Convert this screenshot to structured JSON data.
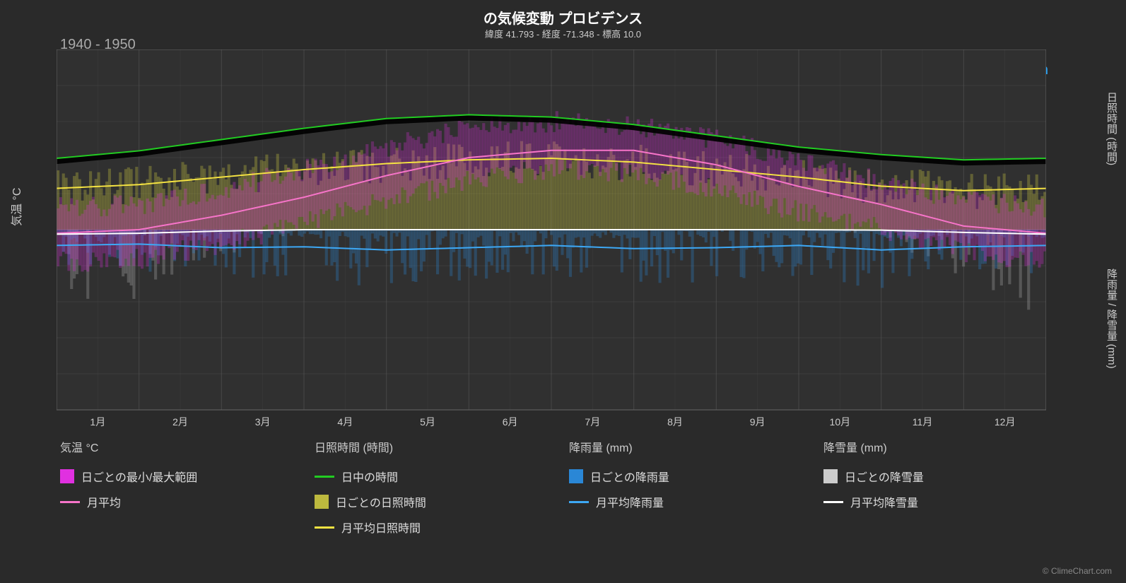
{
  "title": "の気候変動 プロビデンス",
  "subtitle": "緯度 41.793 - 経度 -71.348 - 標高 10.0",
  "period": "1940 - 1950",
  "watermark_text": "ClimeChart.com",
  "copyright": "© ClimeChart.com",
  "background_color": "#2a2a2a",
  "plot_background": "#303030",
  "grid_color": "#555555",
  "axis_text_color": "#cccccc",
  "left_axis": {
    "label": "気温 °C",
    "min": -50,
    "max": 50,
    "step": 10,
    "ticks": [
      -50,
      -40,
      -30,
      -20,
      -10,
      0,
      10,
      20,
      30,
      40,
      50
    ]
  },
  "right_axis_top": {
    "label": "日照時間 (時間)",
    "min": 0,
    "max": 24,
    "step": 6,
    "ticks": [
      0,
      6,
      12,
      18,
      24
    ]
  },
  "right_axis_bottom": {
    "label": "降雨量 / 降雪量 (mm)",
    "min": 0,
    "max": 40,
    "step": 10,
    "ticks": [
      0,
      10,
      20,
      30,
      40
    ]
  },
  "x_axis": {
    "months": [
      "1月",
      "2月",
      "3月",
      "4月",
      "5月",
      "6月",
      "7月",
      "8月",
      "9月",
      "10月",
      "11月",
      "12月"
    ]
  },
  "series": {
    "daylight_hours": {
      "color": "#22cc22",
      "width": 2,
      "values": [
        9.5,
        10.5,
        12.0,
        13.5,
        14.8,
        15.3,
        15.0,
        14.0,
        12.5,
        11.0,
        10.0,
        9.3
      ]
    },
    "avg_sunshine": {
      "color": "#f5e342",
      "width": 2,
      "values": [
        5.5,
        6.0,
        7.0,
        8.0,
        8.8,
        9.3,
        9.5,
        9.0,
        8.0,
        7.0,
        5.8,
        5.2
      ]
    },
    "avg_temp": {
      "color": "#f774c9",
      "width": 2,
      "values": [
        -1,
        0,
        4,
        9,
        15,
        20,
        22,
        22,
        18,
        12,
        7,
        1
      ]
    },
    "avg_rain": {
      "color": "#3da8f5",
      "width": 2,
      "values": [
        3.5,
        3.2,
        4.0,
        3.8,
        4.5,
        4.0,
        3.5,
        4.2,
        4.0,
        3.5,
        4.5,
        3.8
      ]
    },
    "avg_snow": {
      "color": "#ffffff",
      "width": 2,
      "values": [
        1.0,
        0.8,
        0.3,
        0,
        0,
        0,
        0,
        0,
        0,
        0,
        0.1,
        0.6
      ]
    }
  },
  "bars": {
    "sunshine_daily": {
      "color": "#bdb93e",
      "opacity": 0.35
    },
    "temp_range": {
      "color": "#e030e0",
      "opacity": 0.28
    },
    "rain_daily": {
      "color": "#2a87d6",
      "opacity": 0.3
    },
    "snow_daily": {
      "color": "#cccccc",
      "opacity": 0.25
    }
  },
  "temp_range_band": {
    "min": [
      -9,
      -8,
      -4,
      2,
      8,
      14,
      17,
      16,
      11,
      5,
      0,
      -6
    ],
    "max": [
      6,
      7,
      11,
      17,
      23,
      28,
      30,
      29,
      25,
      19,
      13,
      8
    ]
  },
  "legend": {
    "sections": [
      {
        "header": "気温 °C",
        "items": [
          {
            "type": "swatch",
            "color": "#e030e0",
            "label": "日ごとの最小/最大範囲"
          },
          {
            "type": "line",
            "color": "#f774c9",
            "label": "月平均"
          }
        ]
      },
      {
        "header": "日照時間 (時間)",
        "items": [
          {
            "type": "line",
            "color": "#22cc22",
            "label": "日中の時間"
          },
          {
            "type": "swatch",
            "color": "#bdb93e",
            "label": "日ごとの日照時間"
          },
          {
            "type": "line",
            "color": "#f5e342",
            "label": "月平均日照時間"
          }
        ]
      },
      {
        "header": "降雨量 (mm)",
        "items": [
          {
            "type": "swatch",
            "color": "#2a87d6",
            "label": "日ごとの降雨量"
          },
          {
            "type": "line",
            "color": "#3da8f5",
            "label": "月平均降雨量"
          }
        ]
      },
      {
        "header": "降雪量 (mm)",
        "items": [
          {
            "type": "swatch",
            "color": "#cccccc",
            "label": "日ごとの降雪量"
          },
          {
            "type": "line",
            "color": "#ffffff",
            "label": "月平均降雪量"
          }
        ]
      }
    ]
  }
}
